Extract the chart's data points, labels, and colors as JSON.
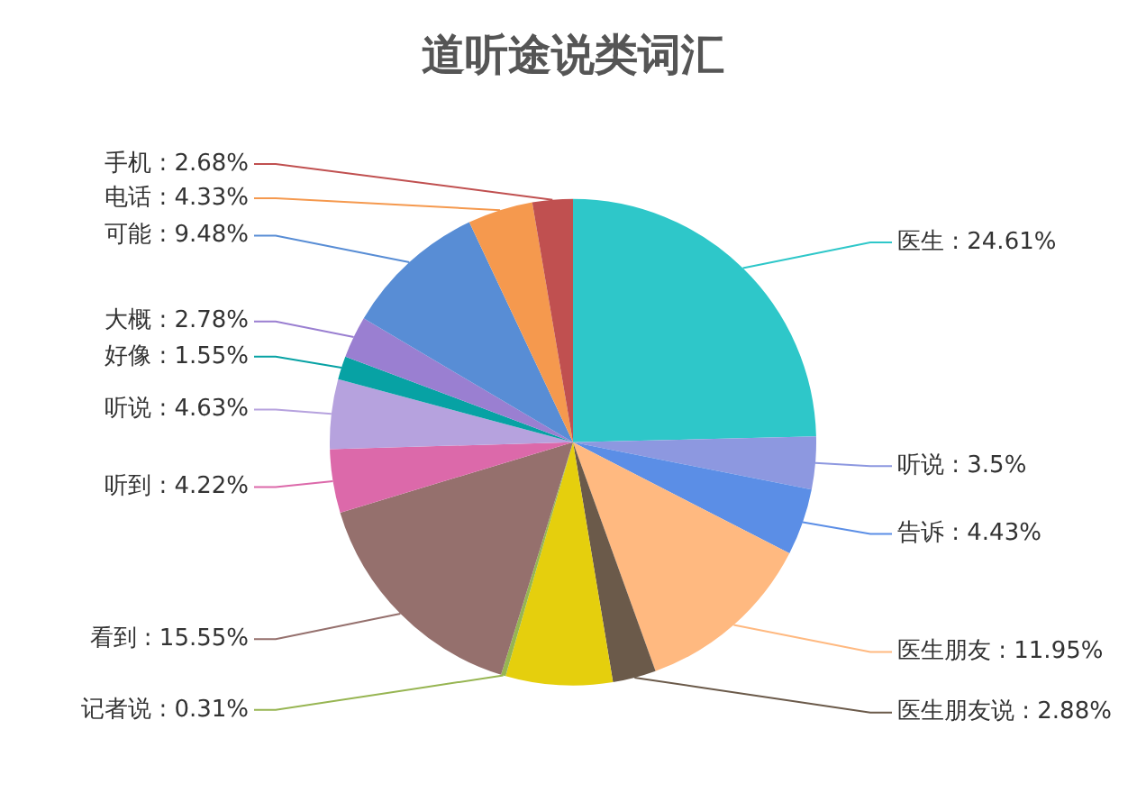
{
  "chart_data": {
    "type": "pie",
    "title": "道听途说类词汇",
    "categories": [
      "医生",
      "听说",
      "告诉",
      "医生朋友",
      "医生朋友说",
      null,
      "记者说",
      "看到",
      "听到",
      "听说",
      "好像",
      "大概",
      "可能",
      "电话",
      "手机"
    ],
    "values": [
      24.61,
      3.5,
      4.43,
      11.95,
      2.88,
      7.1,
      0.31,
      15.55,
      4.22,
      4.63,
      1.55,
      2.78,
      9.48,
      4.33,
      2.68
    ],
    "colors": [
      "#2ec7c9",
      "#8d98e0",
      "#5b8ee6",
      "#ffb980",
      "#6b5a4a",
      "#e5cf0d",
      "#97b552",
      "#95706d",
      "#dc69aa",
      "#b6a2de",
      "#07a2a4",
      "#9a7fd1",
      "#588dd5",
      "#f5994e",
      "#c05050"
    ],
    "value_labels": [
      ": 24.61%",
      ": 3.5%",
      ": 4.43%",
      ": 11.95%",
      ": 2.88%",
      null,
      ": 0.31%",
      ": 15.55%",
      ": 4.22%",
      ": 4.63%",
      ": 1.55%",
      ": 2.78%",
      ": 9.48%",
      ": 4.33%",
      ": 2.68%"
    ],
    "legend": false
  }
}
